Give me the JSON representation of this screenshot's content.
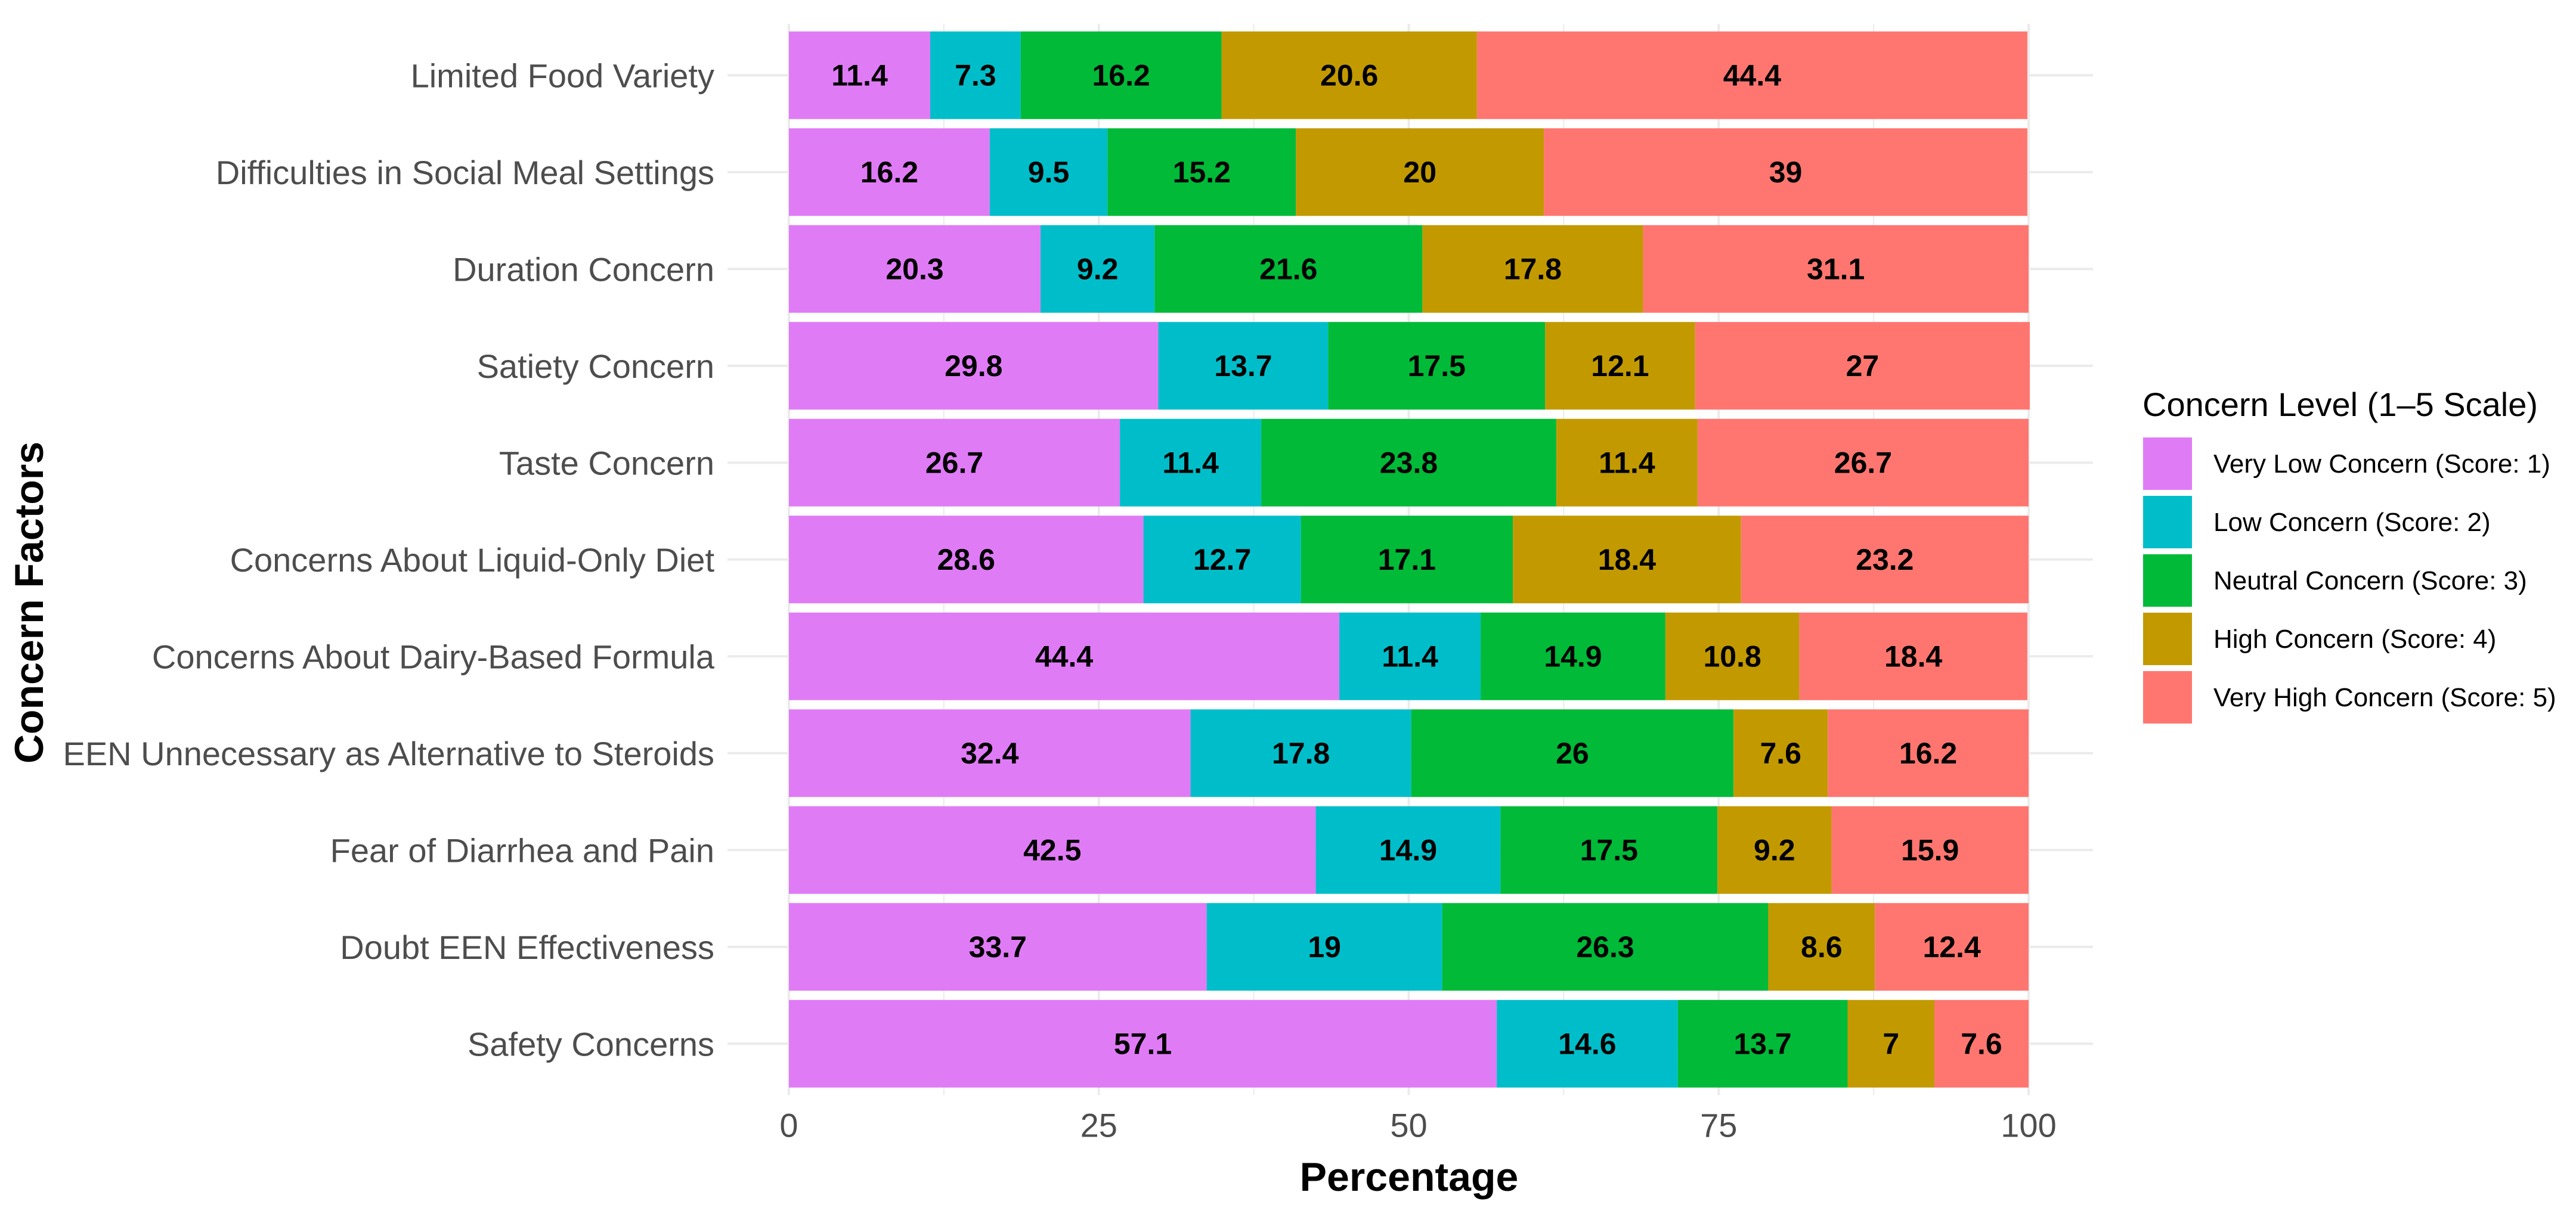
{
  "chart_data": {
    "type": "bar",
    "orientation": "horizontal",
    "stacked": true,
    "title": "",
    "xlabel": "Percentage",
    "ylabel": "Concern Factors",
    "xlim": [
      0,
      100
    ],
    "x_ticks": [
      "0",
      "25",
      "50",
      "75",
      "100"
    ],
    "x_tick_values": [
      0,
      25,
      50,
      75,
      100
    ],
    "grid": true,
    "legend_position": "right",
    "categories": [
      "Limited Food Variety",
      "Difficulties in Social Meal Settings",
      "Duration Concern",
      "Satiety Concern",
      "Taste Concern",
      "Concerns About Liquid-Only Diet",
      "Concerns About Dairy-Based Formula",
      "EEN Unnecessary as Alternative to Steroids",
      "Fear of Diarrhea and Pain",
      "Doubt EEN Effectiveness",
      "Safety Concerns"
    ],
    "series": [
      {
        "name": "Very Low Concern (Score: 1)",
        "color": "#E07BF6",
        "values": [
          11.4,
          16.2,
          20.3,
          29.8,
          26.7,
          28.6,
          44.4,
          32.4,
          42.5,
          33.7,
          57.1
        ]
      },
      {
        "name": "Low Concern (Score: 2)",
        "color": "#00BEC9",
        "values": [
          7.3,
          9.5,
          9.2,
          13.7,
          11.4,
          12.7,
          11.4,
          17.8,
          14.9,
          19,
          14.6
        ]
      },
      {
        "name": "Neutral Concern (Score: 3)",
        "color": "#00BA38",
        "values": [
          16.2,
          15.2,
          21.6,
          17.5,
          23.8,
          17.1,
          14.9,
          26,
          17.5,
          26.3,
          13.7
        ]
      },
      {
        "name": "High Concern (Score: 4)",
        "color": "#C29A00",
        "values": [
          20.6,
          20,
          17.8,
          12.1,
          11.4,
          18.4,
          10.8,
          7.6,
          9.2,
          8.6,
          7
        ]
      },
      {
        "name": "Very High Concern (Score: 5)",
        "color": "#FF7670",
        "values": [
          44.4,
          39,
          31.1,
          27,
          26.7,
          23.2,
          18.4,
          16.2,
          15.9,
          12.4,
          7.6
        ]
      }
    ]
  },
  "legend": {
    "title": "Concern Level (1–5 Scale)"
  }
}
